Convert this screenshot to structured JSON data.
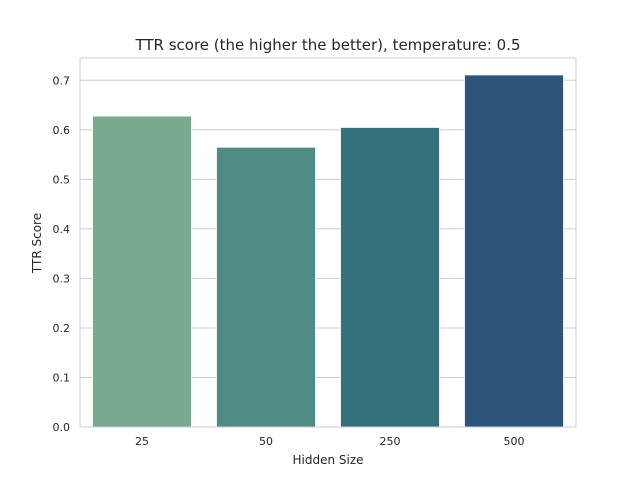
{
  "chart_data": {
    "type": "bar",
    "title": "TTR score (the higher the better), temperature: 0.5",
    "xlabel": "Hidden Size",
    "ylabel": "TTR Score",
    "categories": [
      "25",
      "50",
      "250",
      "500"
    ],
    "values": [
      0.628,
      0.565,
      0.605,
      0.711
    ],
    "ylim": [
      0,
      0.745
    ],
    "yticks": [
      0.0,
      0.1,
      0.2,
      0.3,
      0.4,
      0.5,
      0.6,
      0.7
    ],
    "ytick_labels": [
      "0.0",
      "0.1",
      "0.2",
      "0.3",
      "0.4",
      "0.5",
      "0.6",
      "0.7"
    ],
    "grid": "horizontal",
    "colors": [
      "#79a98f",
      "#4e8b83",
      "#35717b",
      "#2c5579"
    ]
  }
}
